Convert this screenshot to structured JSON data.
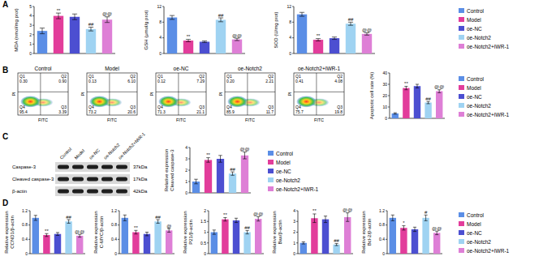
{
  "panel_labels": [
    "A",
    "B",
    "C",
    "D"
  ],
  "chart_data": [
    {
      "type": "bar",
      "y_label": "MDA (nmol/mg prot)",
      "categories": [
        "Control",
        "Model",
        "oe-NC",
        "oe-Notch2",
        "oe-Notch2+IWR-1"
      ],
      "values": [
        2.4,
        4.0,
        3.9,
        2.6,
        3.6
      ],
      "errors": [
        0.3,
        0.3,
        0.3,
        0.2,
        0.3
      ],
      "annotations": [
        null,
        "**",
        null,
        "##",
        "@@"
      ],
      "colors": [
        "#5b8ee6",
        "#e23d9b",
        "#4c4fd1",
        "#9fd3f2",
        "#de7fd6"
      ],
      "ylim": [
        0,
        5
      ],
      "yticks": [
        0,
        1,
        2,
        3,
        4,
        5
      ],
      "tick_labels": "y"
    },
    {
      "type": "bar",
      "y_label": "GSH (μmol/g prot)",
      "categories": [
        "Control",
        "Model",
        "oe-NC",
        "oe-Notch2",
        "oe-Notch2+IWR-1"
      ],
      "values": [
        9.2,
        3.3,
        3.0,
        8.6,
        3.6
      ],
      "errors": [
        0.5,
        0.3,
        0.2,
        0.5,
        0.3
      ],
      "annotations": [
        null,
        "**",
        null,
        "##",
        "@@"
      ],
      "colors": [
        "#5b8ee6",
        "#e23d9b",
        "#4c4fd1",
        "#9fd3f2",
        "#de7fd6"
      ],
      "ylim": [
        0,
        12
      ],
      "yticks": [
        0,
        4,
        8,
        12
      ],
      "tick_labels": "y"
    },
    {
      "type": "bar",
      "y_label": "SOD (U/mg prot)",
      "categories": [
        "Control",
        "Model",
        "oe-NC",
        "oe-Notch2",
        "oe-Notch2+IWR-1"
      ],
      "values": [
        10.0,
        3.5,
        3.9,
        7.6,
        5.0
      ],
      "errors": [
        0.5,
        0.3,
        0.3,
        0.4,
        0.3
      ],
      "annotations": [
        null,
        "**",
        null,
        "##",
        "@@"
      ],
      "colors": [
        "#5b8ee6",
        "#e23d9b",
        "#4c4fd1",
        "#9fd3f2",
        "#de7fd6"
      ],
      "ylim": [
        0,
        12
      ],
      "yticks": [
        0,
        4,
        8,
        12
      ],
      "tick_labels": "y",
      "legend": "right"
    },
    {
      "type": "bar",
      "y_label": "Apoptotic cell rate (%)",
      "categories": [
        "Control",
        "Model",
        "oe-NC",
        "oe-Notch2",
        "oe-Notch2+IWR-1"
      ],
      "values": [
        4.3,
        26.7,
        28.4,
        13.9,
        23.9
      ],
      "errors": [
        0.6,
        1.5,
        1.6,
        1.0,
        1.3
      ],
      "annotations": [
        null,
        "**",
        null,
        "##",
        "@@"
      ],
      "colors": [
        "#5b8ee6",
        "#e23d9b",
        "#4c4fd1",
        "#9fd3f2",
        "#de7fd6"
      ],
      "ylim": [
        0,
        40
      ],
      "yticks": [
        0,
        10,
        20,
        30,
        40
      ],
      "tick_labels": "y",
      "legend": "right"
    },
    {
      "type": "bar",
      "y_label": "Relative expression\nCleaved caspase-3",
      "categories": [
        "Control",
        "Model",
        "oe-NC",
        "oe-Notch2",
        "oe-Notch2+IWR-1"
      ],
      "values": [
        1.0,
        2.9,
        3.0,
        1.7,
        3.3
      ],
      "errors": [
        0.2,
        0.2,
        0.3,
        0.15,
        0.3
      ],
      "annotations": [
        null,
        "**",
        null,
        "##",
        "@@"
      ],
      "colors": [
        "#5b8ee6",
        "#e23d9b",
        "#4c4fd1",
        "#9fd3f2",
        "#de7fd6"
      ],
      "ylim": [
        0,
        4
      ],
      "yticks": [
        0,
        1,
        2,
        3,
        4
      ],
      "tick_labels": "y",
      "legend": "right"
    },
    {
      "type": "bar",
      "y_label": "Relative expression\nCCND1/β-actin",
      "categories": [
        "Control",
        "Model",
        "oe-NC",
        "oe-Notch2",
        "oe-Notch2+IWR-1"
      ],
      "values": [
        1.0,
        0.52,
        0.55,
        0.9,
        0.5
      ],
      "errors": [
        0.07,
        0.04,
        0.04,
        0.05,
        0.04
      ],
      "annotations": [
        null,
        "**",
        null,
        "##",
        "@@"
      ],
      "colors": [
        "#5b8ee6",
        "#e23d9b",
        "#4c4fd1",
        "#9fd3f2",
        "#de7fd6"
      ],
      "ylim": [
        0,
        1.2
      ],
      "yticks": [
        0,
        0.4,
        0.8,
        1.2
      ],
      "tick_labels": "y"
    },
    {
      "type": "bar",
      "y_label": "Relative expression\nC-MYC/β-actin",
      "categories": [
        "Control",
        "Model",
        "oe-NC",
        "oe-Notch2",
        "oe-Notch2+IWR-1"
      ],
      "values": [
        1.0,
        0.6,
        0.55,
        0.9,
        0.65
      ],
      "errors": [
        0.08,
        0.05,
        0.05,
        0.05,
        0.05
      ],
      "annotations": [
        null,
        "**",
        null,
        "##",
        "@"
      ],
      "colors": [
        "#5b8ee6",
        "#e23d9b",
        "#4c4fd1",
        "#9fd3f2",
        "#de7fd6"
      ],
      "ylim": [
        0,
        1.2
      ],
      "yticks": [
        0,
        0.4,
        0.8,
        1.2
      ],
      "tick_labels": "y"
    },
    {
      "type": "bar",
      "y_label": "Relative expression\nP21/β-actin",
      "categories": [
        "Control",
        "Model",
        "oe-NC",
        "oe-Notch2",
        "oe-Notch2+IWR-1"
      ],
      "values": [
        1.0,
        1.6,
        1.55,
        1.0,
        1.62
      ],
      "errors": [
        0.1,
        0.08,
        0.1,
        0.08,
        0.1
      ],
      "annotations": [
        null,
        "**",
        null,
        "##",
        "@@"
      ],
      "colors": [
        "#5b8ee6",
        "#e23d9b",
        "#4c4fd1",
        "#9fd3f2",
        "#de7fd6"
      ],
      "ylim": [
        0,
        2
      ],
      "yticks": [
        0,
        0.5,
        1,
        1.5,
        2
      ],
      "tick_labels": "y"
    },
    {
      "type": "bar",
      "y_label": "Relative expression\nBax/β-actin",
      "categories": [
        "Control",
        "Model",
        "oe-NC",
        "oe-Notch2",
        "oe-Notch2+IWR-1"
      ],
      "values": [
        1.0,
        3.3,
        3.2,
        0.85,
        3.4
      ],
      "errors": [
        0.1,
        0.4,
        0.3,
        0.1,
        0.4
      ],
      "annotations": [
        null,
        "**",
        null,
        "##",
        "@@"
      ],
      "colors": [
        "#5b8ee6",
        "#e23d9b",
        "#4c4fd1",
        "#9fd3f2",
        "#de7fd6"
      ],
      "ylim": [
        0,
        4
      ],
      "yticks": [
        0,
        1,
        2,
        3,
        4
      ],
      "tick_labels": "y"
    },
    {
      "type": "bar",
      "y_label": "Relative expression\nBcl-2/β-actin",
      "categories": [
        "Control",
        "Model",
        "oe-NC",
        "oe-Notch2",
        "oe-Notch2+IWR-1"
      ],
      "values": [
        1.0,
        0.72,
        0.68,
        1.0,
        0.58
      ],
      "errors": [
        0.08,
        0.06,
        0.06,
        0.08,
        0.05
      ],
      "annotations": [
        null,
        "*",
        null,
        "#",
        "@@"
      ],
      "colors": [
        "#5b8ee6",
        "#e23d9b",
        "#4c4fd1",
        "#9fd3f2",
        "#de7fd6"
      ],
      "ylim": [
        0,
        1.2
      ],
      "yticks": [
        0,
        0.4,
        0.8,
        1.2
      ],
      "tick_labels": "y",
      "legend": "right"
    }
  ],
  "flow": {
    "x_label": "FITC",
    "y_label": "PI",
    "plots": [
      {
        "title": "Control",
        "quadrants": [
          {
            "label": "Q1",
            "value": "0.30"
          },
          {
            "label": "Q2",
            "value": "0.90"
          },
          {
            "label": "Q3",
            "value": "3.39"
          },
          {
            "label": "Q4",
            "value": "95.4"
          }
        ]
      },
      {
        "title": "Model",
        "quadrants": [
          {
            "label": "Q1",
            "value": "0.13"
          },
          {
            "label": "Q2",
            "value": "6.10"
          },
          {
            "label": "Q3",
            "value": "20.6"
          },
          {
            "label": "Q4",
            "value": "73.2"
          }
        ]
      },
      {
        "title": "oe-NC",
        "quadrants": [
          {
            "label": "Q1",
            "value": "0.12"
          },
          {
            "label": "Q2",
            "value": "7.29"
          },
          {
            "label": "Q3",
            "value": "21.1"
          },
          {
            "label": "Q4",
            "value": "71.3"
          }
        ]
      },
      {
        "title": "oe-Notch2",
        "quadrants": [
          {
            "label": "Q1",
            "value": "0.20"
          },
          {
            "label": "Q2",
            "value": "2.21"
          },
          {
            "label": "Q3",
            "value": "11.7"
          },
          {
            "label": "Q4",
            "value": "85.9"
          }
        ]
      },
      {
        "title": "oe-Notch2+IWR-1",
        "quadrants": [
          {
            "label": "Q1",
            "value": "0.41"
          },
          {
            "label": "Q2",
            "value": "4.08"
          },
          {
            "label": "Q3",
            "value": "19.8"
          },
          {
            "label": "Q4",
            "value": "75.7"
          }
        ]
      }
    ]
  },
  "blot": {
    "lanes": [
      "Control",
      "Model",
      "oe-NC",
      "oe-Notch2",
      "oe-Notch2+IWR-1"
    ],
    "rows": [
      {
        "name": "Caspase-3",
        "size": "37kDa"
      },
      {
        "name": "Cleaved caspase-3",
        "size": "17kDa"
      },
      {
        "name": "β-actin",
        "size": "42kDa"
      }
    ]
  }
}
